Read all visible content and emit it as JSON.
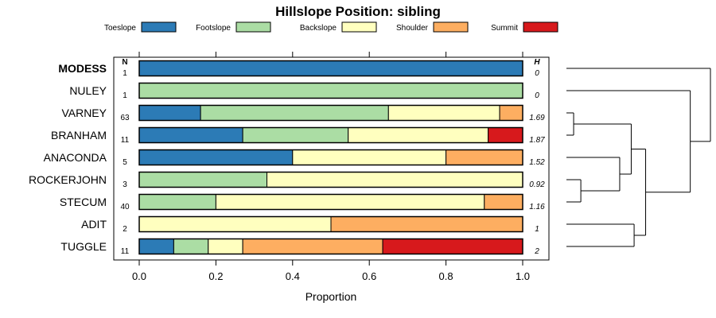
{
  "chart_data": {
    "type": "bar",
    "orientation": "horizontal",
    "stacked": true,
    "title": "Hillslope Position: sibling",
    "xlabel": "Proportion",
    "xlim": [
      0,
      1
    ],
    "x_ticks": [
      "0.0",
      "0.2",
      "0.4",
      "0.6",
      "0.8",
      "1.0"
    ],
    "n_header": "N",
    "h_header": "H",
    "legend_placement": "top",
    "series": [
      {
        "name": "Toeslope",
        "color": "#2c7bb6"
      },
      {
        "name": "Footslope",
        "color": "#abdda4"
      },
      {
        "name": "Backslope",
        "color": "#ffffbf"
      },
      {
        "name": "Shoulder",
        "color": "#fdae61"
      },
      {
        "name": "Summit",
        "color": "#d7191c"
      }
    ],
    "categories": [
      {
        "label": "MODESS",
        "bold": true,
        "n": "1",
        "h": "0",
        "values": [
          1.0,
          0,
          0,
          0,
          0
        ]
      },
      {
        "label": "NULEY",
        "bold": false,
        "n": "1",
        "h": "0",
        "values": [
          0,
          1.0,
          0,
          0,
          0
        ]
      },
      {
        "label": "VARNEY",
        "bold": false,
        "n": "63",
        "h": "1.69",
        "values": [
          0.16,
          0.49,
          0.29,
          0.06,
          0
        ]
      },
      {
        "label": "BRANHAM",
        "bold": false,
        "n": "11",
        "h": "1.87",
        "values": [
          0.27,
          0.275,
          0.365,
          0,
          0.09
        ]
      },
      {
        "label": "ANACONDA",
        "bold": false,
        "n": "5",
        "h": "1.52",
        "values": [
          0.4,
          0,
          0.4,
          0.2,
          0
        ]
      },
      {
        "label": "ROCKERJOHN",
        "bold": false,
        "n": "3",
        "h": "0.92",
        "values": [
          0,
          0.333,
          0.667,
          0,
          0
        ]
      },
      {
        "label": "STECUM",
        "bold": false,
        "n": "40",
        "h": "1.16",
        "values": [
          0,
          0.2,
          0.7,
          0.1,
          0
        ]
      },
      {
        "label": "ADIT",
        "bold": false,
        "n": "2",
        "h": "1",
        "values": [
          0,
          0,
          0.5,
          0.5,
          0
        ]
      },
      {
        "label": "TUGGLE",
        "bold": false,
        "n": "11",
        "h": "2",
        "values": [
          0.09,
          0.09,
          0.09,
          0.365,
          0.365
        ]
      }
    ],
    "dendrogram": {
      "leaf_order": [
        "MODESS",
        "NULEY",
        "VARNEY",
        "BRANHAM",
        "ANACONDA",
        "ROCKERJOHN",
        "STECUM",
        "ADIT",
        "TUGGLE"
      ],
      "merges": [
        {
          "a": "VARNEY",
          "b": "BRANHAM",
          "height": 0.05
        },
        {
          "a": "ROCKERJOHN",
          "b": "STECUM",
          "height": 0.1
        },
        {
          "a": "ANACONDA",
          "b": "ROCKERJOHN+STECUM",
          "height": 0.37
        },
        {
          "a": "VARNEY+BRANHAM",
          "b": "ANACONDA+ROCKERJOHN+STECUM",
          "height": 0.45
        },
        {
          "a": "ADIT",
          "b": "TUGGLE",
          "height": 0.47
        },
        {
          "a": "VARNEY+BRANHAM+ANACONDA+ROCKERJOHN+STECUM",
          "b": "ADIT+TUGGLE",
          "height": 0.55
        },
        {
          "a": "NULEY",
          "b": "VARNEY+BRANHAM+ANACONDA+ROCKERJOHN+STECUM+ADIT+TUGGLE",
          "height": 0.86
        },
        {
          "a": "MODESS",
          "b": "NULEY+VARNEY+BRANHAM+ANACONDA+ROCKERJOHN+STECUM+ADIT+TUGGLE",
          "height": 1.0
        }
      ]
    }
  }
}
